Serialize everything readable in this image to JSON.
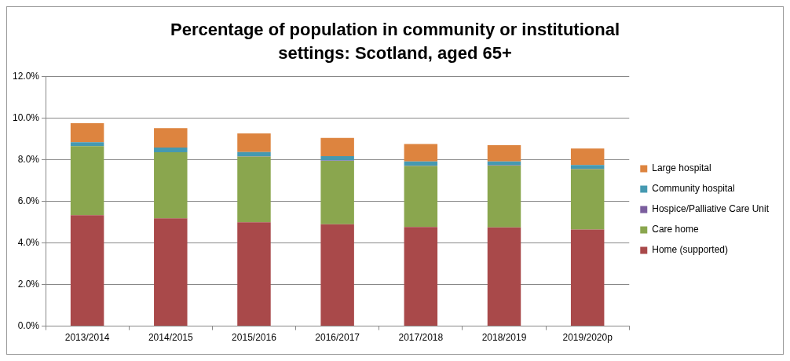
{
  "chart_data": {
    "type": "bar",
    "title": "Percentage of population in community or institutional settings: Scotland, aged 65+",
    "categories": [
      "2013/2014",
      "2014/2015",
      "2015/2016",
      "2016/2017",
      "2017/2018",
      "2018/2019",
      "2019/2020p"
    ],
    "stacked": true,
    "legend": "right",
    "grid": "y",
    "ylim": [
      0,
      12
    ],
    "yticks": [
      {
        "value": 0,
        "label": "0.0%"
      },
      {
        "value": 2,
        "label": "2.0%"
      },
      {
        "value": 4,
        "label": "4.0%"
      },
      {
        "value": 6,
        "label": "6.0%"
      },
      {
        "value": 8,
        "label": "8.0%"
      },
      {
        "value": 10,
        "label": "10.0%"
      },
      {
        "value": 12,
        "label": "12.0%"
      }
    ],
    "series": [
      {
        "name": "Home (supported)",
        "color": "#a9494a",
        "values": [
          5.33,
          5.18,
          4.99,
          4.89,
          4.76,
          4.74,
          4.64
        ]
      },
      {
        "name": "Care home",
        "color": "#8aa64e",
        "values": [
          3.31,
          3.17,
          3.15,
          3.05,
          2.93,
          2.97,
          2.9
        ]
      },
      {
        "name": "Hospice/Palliative Care Unit",
        "color": "#7b5e9e",
        "values": [
          null,
          null,
          0.02,
          0.02,
          0.02,
          0.02,
          0.02
        ]
      },
      {
        "name": "Community hospital",
        "color": "#4599b1",
        "values": [
          0.19,
          0.23,
          0.2,
          0.2,
          0.2,
          0.18,
          0.18
        ]
      },
      {
        "name": "Large hospital",
        "color": "#dd843f",
        "values": [
          0.92,
          0.93,
          0.9,
          0.88,
          0.84,
          0.78,
          0.79
        ]
      }
    ]
  }
}
